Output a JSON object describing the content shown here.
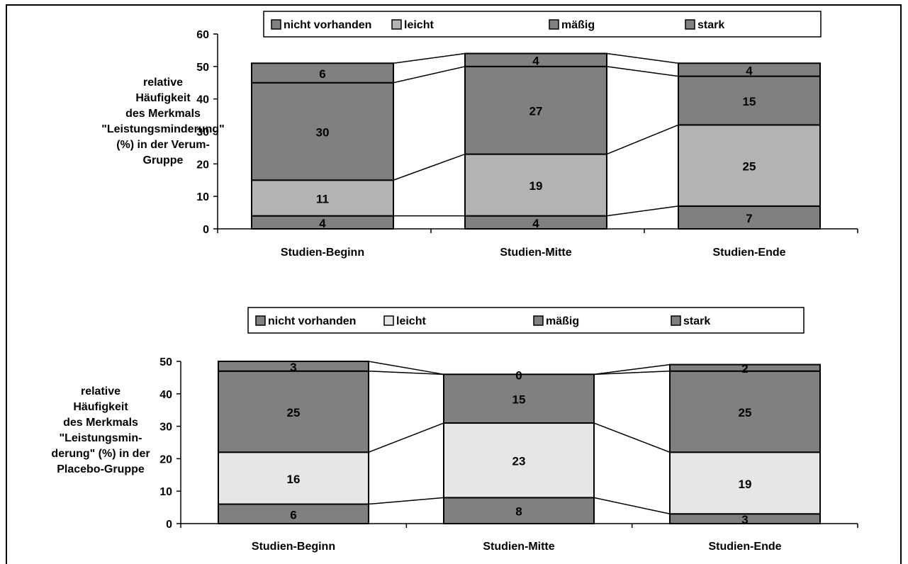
{
  "chart_data": [
    {
      "type": "bar",
      "stacked": true,
      "ylabel": "relative Häufigkeit des Merkmals \"Leistungsminderung\" (%) in der Verum-Gruppe",
      "ylabel_lines": [
        "relative",
        "Häufigkeit",
        "des Merkmals",
        "\"Leistungsminderung\"",
        "(%) in der Verum-",
        "Gruppe"
      ],
      "ylim": [
        0,
        60
      ],
      "yticks": [
        0,
        10,
        20,
        30,
        40,
        50,
        60
      ],
      "categories": [
        "Studien-Beginn",
        "Studien-Mitte",
        "Studien-Ende"
      ],
      "series": [
        {
          "name": "nicht vorhanden",
          "values": [
            4,
            4,
            7
          ],
          "color": "#808080"
        },
        {
          "name": "leicht",
          "values": [
            11,
            19,
            25
          ],
          "color": "#b3b3b3"
        },
        {
          "name": "mäßig",
          "values": [
            30,
            27,
            15
          ],
          "color": "#808080"
        },
        {
          "name": "stark",
          "values": [
            6,
            4,
            4
          ],
          "color": "#808080"
        }
      ],
      "legend_position": "top",
      "grid": false
    },
    {
      "type": "bar",
      "stacked": true,
      "ylabel": "relative Häufigkeit des Merkmals \"Leistungsminderung\" (%) in der Placebo-Gruppe",
      "ylabel_lines": [
        "relative",
        "Häufigkeit",
        "des Merkmals",
        "\"Leistungsmin-",
        "derung\" (%) in der",
        "Placebo-Gruppe"
      ],
      "ylim": [
        0,
        50
      ],
      "yticks": [
        0,
        10,
        20,
        30,
        40,
        50
      ],
      "categories": [
        "Studien-Beginn",
        "Studien-Mitte",
        "Studien-Ende"
      ],
      "series": [
        {
          "name": "nicht vorhanden",
          "values": [
            6,
            8,
            3
          ],
          "color": "#808080"
        },
        {
          "name": "leicht",
          "values": [
            16,
            23,
            19
          ],
          "color": "#e6e6e6"
        },
        {
          "name": "mäßig",
          "values": [
            25,
            15,
            25
          ],
          "color": "#808080"
        },
        {
          "name": "stark",
          "values": [
            3,
            0,
            2
          ],
          "color": "#808080"
        }
      ],
      "legend_position": "top",
      "grid": false
    }
  ]
}
